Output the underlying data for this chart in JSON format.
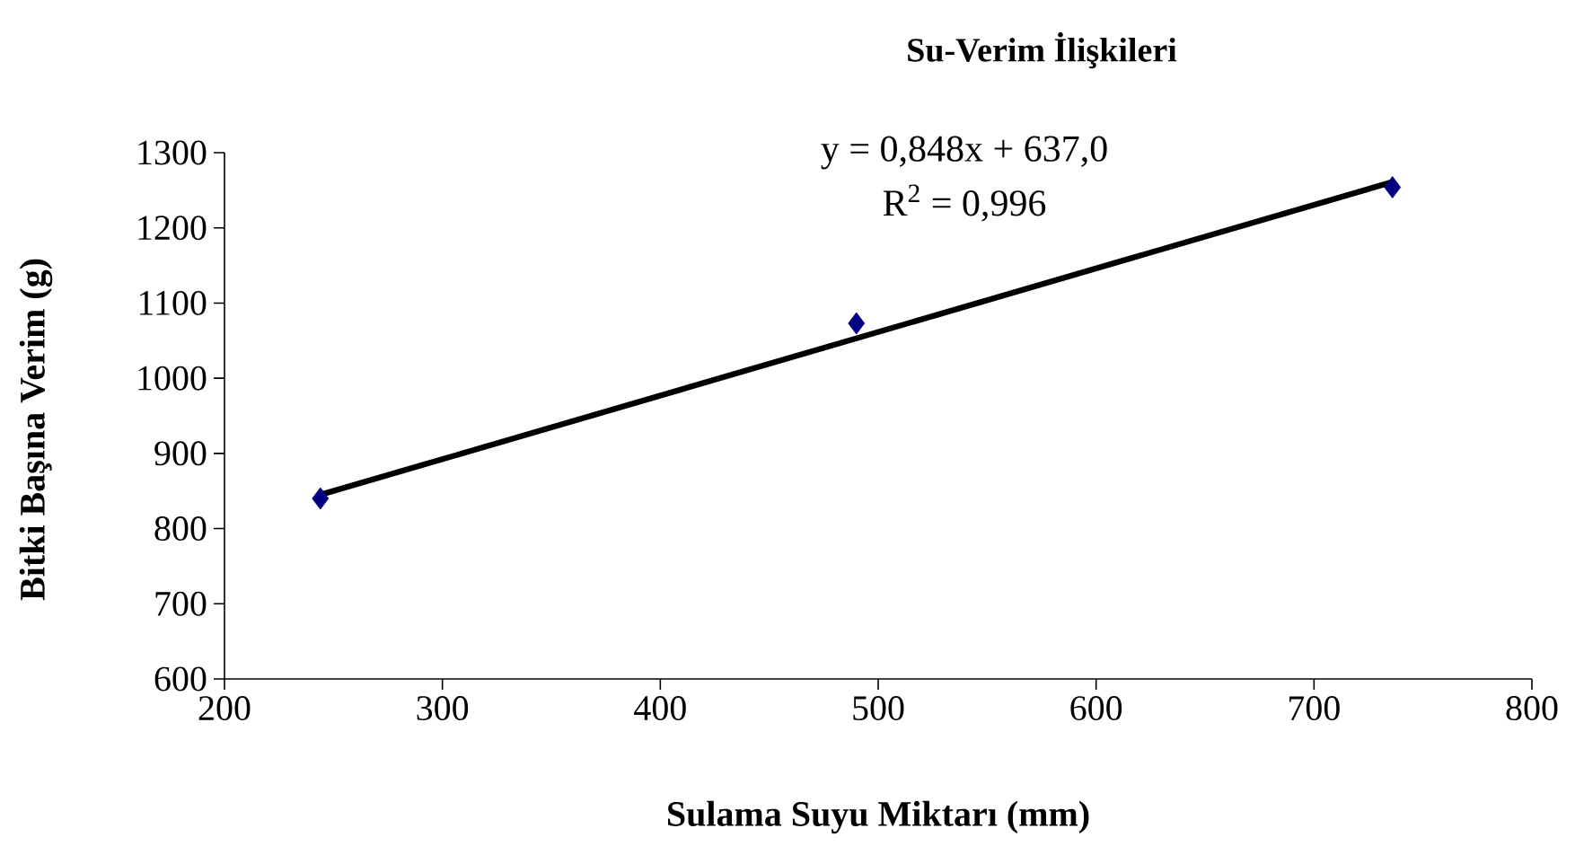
{
  "chart_data": {
    "type": "scatter",
    "title": "Su-Verim İlişkileri",
    "xlabel": "Sulama Suyu Miktarı (mm)",
    "ylabel": "Bitki Başına Verim (g)",
    "xlim": [
      200,
      800
    ],
    "xticks": [
      200,
      300,
      400,
      500,
      600,
      700,
      800
    ],
    "ylim": [
      600,
      1300
    ],
    "yticks": [
      600,
      700,
      800,
      900,
      1000,
      1100,
      1200,
      1300
    ],
    "series": [
      {
        "color": "#000080",
        "marker": "diamond",
        "x": [
          244,
          490,
          736
        ],
        "values": [
          840,
          1073,
          1254
        ]
      },
      {
        "type": "line",
        "color": "#000000",
        "x": [
          244,
          736
        ],
        "values": [
          845,
          1261
        ]
      }
    ],
    "annotations": [
      "y = 0,848x + 637,0",
      "R$^{2}$ = 0,996"
    ]
  }
}
